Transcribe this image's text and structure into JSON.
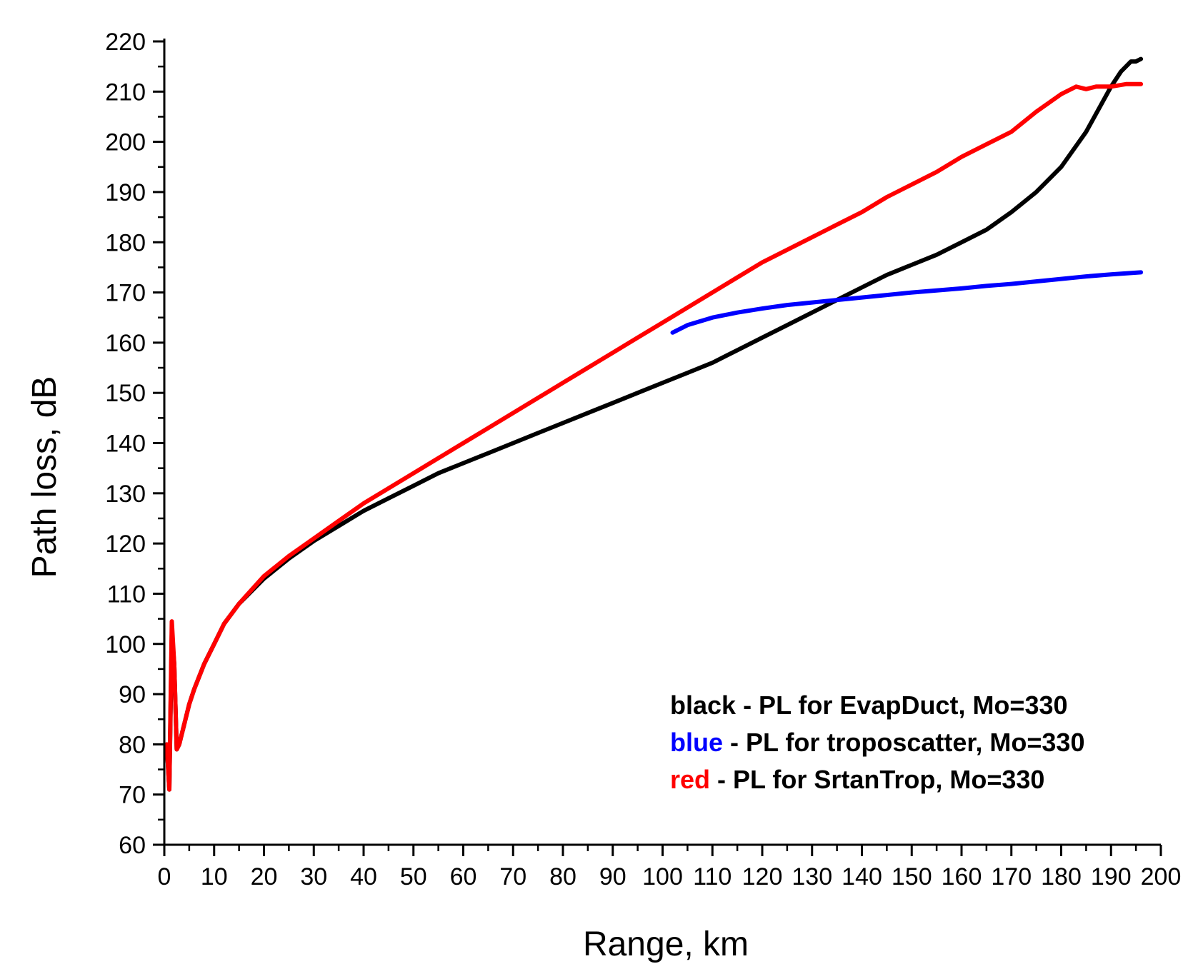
{
  "chart_data": {
    "type": "line",
    "title": "",
    "xlabel": "Range, km",
    "ylabel": "Path loss, dB",
    "xlim": [
      0,
      200
    ],
    "ylim": [
      60,
      220
    ],
    "x_ticks": [
      0,
      10,
      20,
      30,
      40,
      50,
      60,
      70,
      80,
      90,
      100,
      110,
      120,
      130,
      140,
      150,
      160,
      170,
      180,
      190,
      200
    ],
    "y_ticks": [
      60,
      70,
      80,
      90,
      100,
      110,
      120,
      130,
      140,
      150,
      160,
      170,
      180,
      190,
      200,
      210,
      220
    ],
    "grid": false,
    "legend_position": "bottom-right",
    "series": [
      {
        "name": "black",
        "color": "#000000",
        "x": [
          0.5,
          1,
          1.5,
          2,
          2.5,
          3,
          4,
          5,
          6,
          8,
          10,
          12,
          15,
          20,
          25,
          30,
          35,
          40,
          45,
          50,
          55,
          60,
          65,
          70,
          75,
          80,
          85,
          90,
          95,
          100,
          105,
          110,
          115,
          120,
          125,
          130,
          135,
          140,
          145,
          150,
          155,
          160,
          165,
          170,
          175,
          180,
          185,
          190,
          192,
          194,
          195,
          196
        ],
        "y": [
          80,
          71,
          102,
          96,
          79,
          80,
          84,
          88,
          91,
          96,
          100,
          104,
          108,
          113,
          117,
          120.5,
          123.5,
          126.5,
          129,
          131.5,
          134,
          136,
          138,
          140,
          142,
          144,
          146,
          148,
          150,
          152,
          154,
          156,
          158.5,
          161,
          163.5,
          166,
          168.5,
          171,
          173.5,
          175.5,
          177.5,
          180,
          182.5,
          186,
          190,
          195,
          202,
          211,
          214,
          216,
          216,
          216.5
        ],
        "legend": {
          "label": "black",
          "text": " - PL for EvapDuct, Mo=330"
        }
      },
      {
        "name": "blue",
        "color": "#0000ff",
        "x": [
          102,
          105,
          110,
          115,
          120,
          125,
          130,
          135,
          140,
          145,
          150,
          155,
          160,
          165,
          170,
          175,
          180,
          185,
          190,
          196
        ],
        "y": [
          162,
          163.5,
          165,
          166,
          166.8,
          167.5,
          168,
          168.5,
          169,
          169.5,
          170,
          170.4,
          170.8,
          171.3,
          171.7,
          172.2,
          172.7,
          173.2,
          173.6,
          174
        ],
        "legend": {
          "label": "blue",
          "text": " - PL for troposcatter, Mo=330"
        }
      },
      {
        "name": "red",
        "color": "#ff0000",
        "x": [
          0.5,
          1,
          1.5,
          2,
          2.5,
          3,
          4,
          5,
          6,
          8,
          10,
          12,
          15,
          20,
          25,
          30,
          35,
          40,
          45,
          50,
          55,
          60,
          65,
          70,
          75,
          80,
          85,
          90,
          95,
          100,
          105,
          110,
          115,
          120,
          125,
          130,
          135,
          140,
          145,
          150,
          155,
          160,
          165,
          170,
          175,
          180,
          183,
          185,
          187,
          190,
          193,
          196
        ],
        "y": [
          80,
          71,
          104.5,
          96,
          79,
          80,
          84,
          88,
          91,
          96,
          100,
          104,
          108,
          113.5,
          117.5,
          121,
          124.5,
          128,
          131,
          134,
          137,
          140,
          143,
          146,
          149,
          152,
          155,
          158,
          161,
          164,
          167,
          170,
          173,
          176,
          178.5,
          181,
          183.5,
          186,
          189,
          191.5,
          194,
          197,
          199.5,
          202,
          206,
          209.5,
          211,
          210.5,
          211,
          211,
          211.5,
          211.5
        ],
        "legend": {
          "label": "red",
          "text": " - PL for SrtanTrop, Mo=330"
        }
      }
    ]
  }
}
